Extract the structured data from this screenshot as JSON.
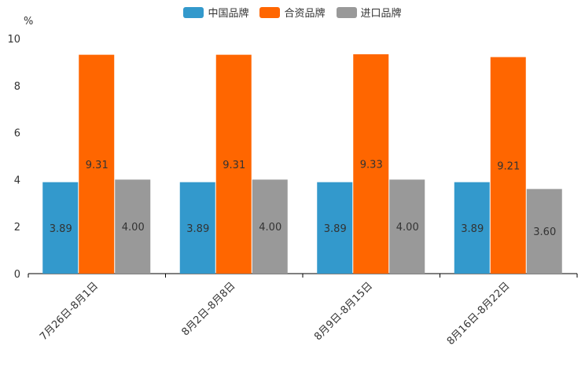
{
  "chart_data": {
    "type": "bar",
    "title": "",
    "xlabel": "",
    "ylabel": "%",
    "ylim": [
      0,
      10
    ],
    "yticks": [
      0,
      2,
      4,
      6,
      8,
      10
    ],
    "categories": [
      "7月26日-8月1日",
      "8月2日-8月8日",
      "8月9日-8月15日",
      "8月16日-8月22日"
    ],
    "series": [
      {
        "name": "中国品牌",
        "color": "#3399cc",
        "values": [
          3.89,
          3.89,
          3.89,
          3.89
        ],
        "labels": [
          "3.89",
          "3.89",
          "3.89",
          "3.89"
        ]
      },
      {
        "name": "合资品牌",
        "color": "#ff6600",
        "values": [
          9.31,
          9.31,
          9.33,
          9.21
        ],
        "labels": [
          "9.31",
          "9.31",
          "9.33",
          "9.21"
        ]
      },
      {
        "name": "进口品牌",
        "color": "#999999",
        "values": [
          4.0,
          4.0,
          4.0,
          3.6
        ],
        "labels": [
          "4.00",
          "4.00",
          "4.00",
          "3.60"
        ]
      }
    ],
    "legend_position": "top-center"
  }
}
